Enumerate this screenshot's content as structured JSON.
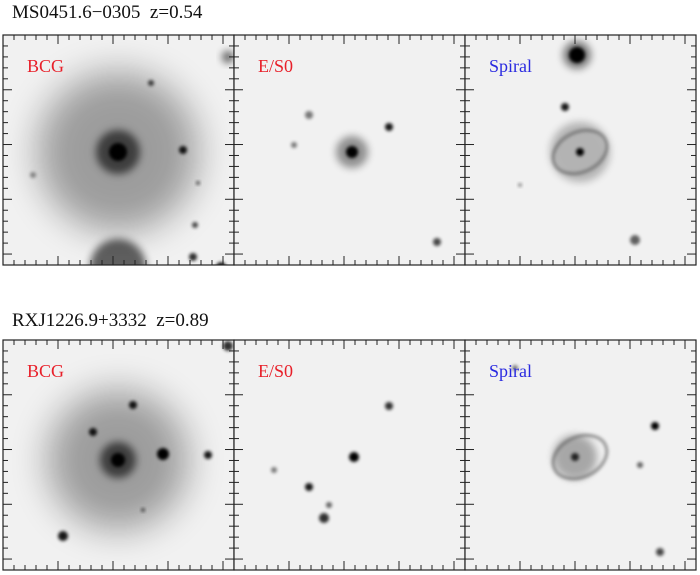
{
  "figure": {
    "rows": [
      {
        "title": "MS0451.6−0305  z=0.54",
        "panels": [
          {
            "label": "BCG"
          },
          {
            "label": "E/S0"
          },
          {
            "label": "Spiral"
          }
        ]
      },
      {
        "title": "RXJ1226.9+3332  z=0.89",
        "panels": [
          {
            "label": "BCG"
          },
          {
            "label": "E/S0"
          },
          {
            "label": "Spiral"
          }
        ]
      }
    ]
  }
}
